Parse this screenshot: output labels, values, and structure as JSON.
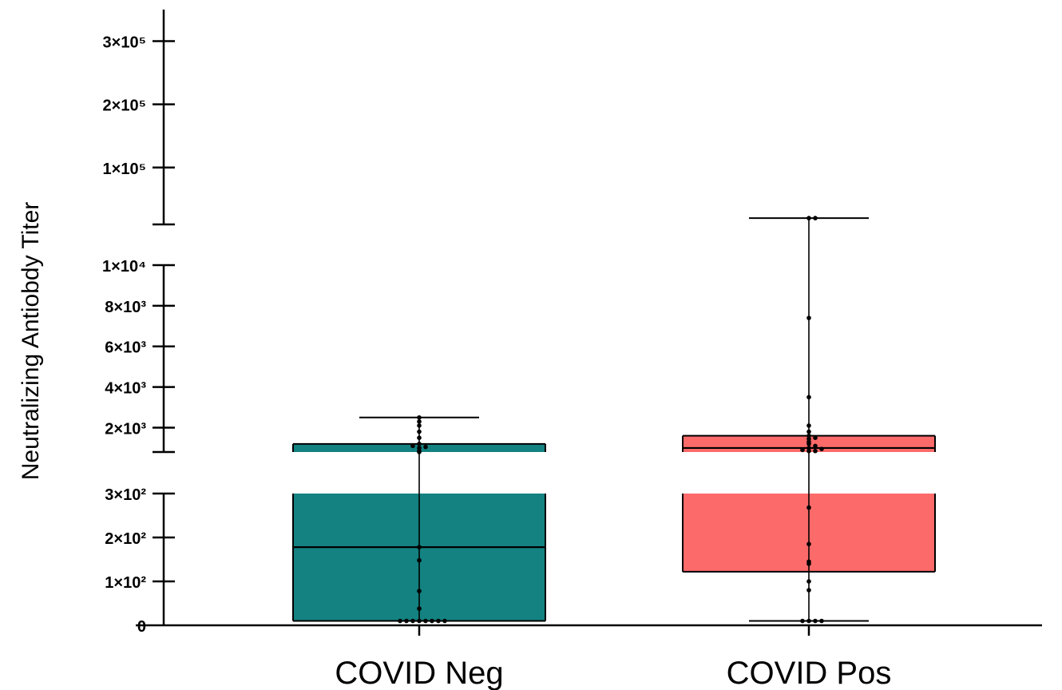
{
  "chart_data": {
    "type": "box",
    "title": "",
    "xlabel": "",
    "ylabel": "Neutralizing Antiobdy Titer",
    "categories": [
      "COVID Neg",
      "COVID Pos"
    ],
    "y_axis_segments": [
      {
        "range": [
          0,
          300
        ],
        "ticks": [
          0,
          100,
          200,
          300
        ],
        "tick_labels": [
          "0",
          "1×10²",
          "2×10²",
          "3×10²"
        ]
      },
      {
        "range": [
          800,
          10000
        ],
        "ticks": [
          2000,
          4000,
          6000,
          8000,
          10000
        ],
        "tick_labels": [
          "2×10³",
          "4×10³",
          "6×10³",
          "8×10³",
          "1×10⁴"
        ]
      },
      {
        "range": [
          10000,
          350000
        ],
        "ticks": [
          100000,
          200000,
          300000
        ],
        "tick_labels": [
          "1×10⁵",
          "2×10⁵",
          "3×10⁵"
        ]
      }
    ],
    "series": [
      {
        "category": "COVID Neg",
        "color": "#138281",
        "min": 10,
        "q1": 10,
        "median": 178,
        "q3": 1200,
        "max": 2500,
        "points": [
          10,
          10,
          10,
          10,
          10,
          10,
          10,
          10,
          38,
          78,
          148,
          178,
          800,
          850,
          1000,
          1050,
          1100,
          1200,
          1500,
          1800,
          2100,
          2300,
          2500
        ]
      },
      {
        "category": "COVID Pos",
        "color": "#fd6a6a",
        "min": 10,
        "q1": 122,
        "median": 1000,
        "q3": 1600,
        "max": 20000,
        "points": [
          10,
          10,
          10,
          10,
          80,
          100,
          140,
          145,
          185,
          268,
          850,
          850,
          900,
          950,
          1000,
          1100,
          1200,
          1300,
          1450,
          1500,
          1600,
          1800,
          2100,
          3500,
          7400,
          20000,
          20000
        ]
      }
    ]
  }
}
